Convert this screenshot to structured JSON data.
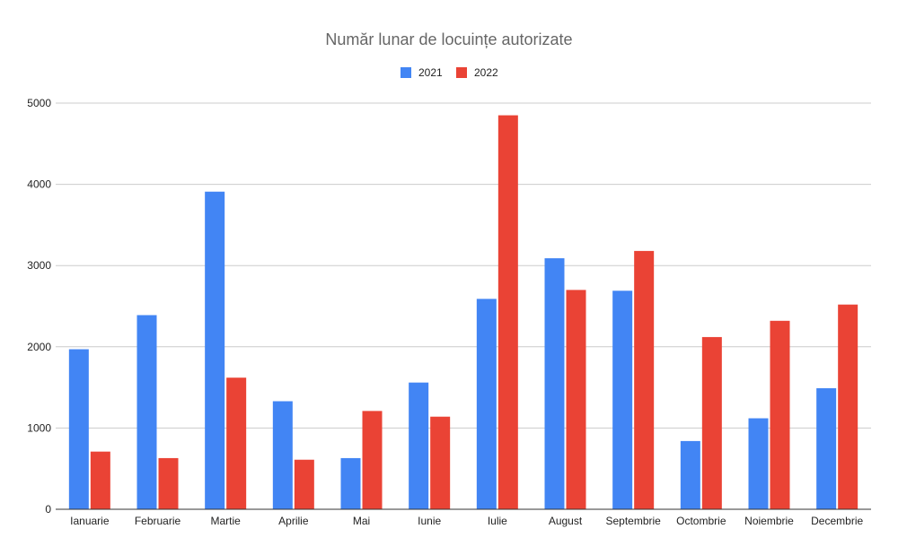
{
  "chart_data": {
    "type": "bar",
    "title": "Număr lunar de locuințe autorizate",
    "xlabel": "",
    "ylabel": "",
    "ylim": [
      0,
      5000
    ],
    "yticks": [
      "0",
      "1000",
      "2000",
      "3000",
      "4000",
      "5000"
    ],
    "grid": true,
    "legend_position": "top",
    "categories": [
      "Ianuarie",
      "Februarie",
      "Martie",
      "Aprilie",
      "Mai",
      "Iunie",
      "Iulie",
      "August",
      "Septembrie",
      "Octombrie",
      "Noiembrie",
      "Decembrie"
    ],
    "series": [
      {
        "name": "2021",
        "color": "#4285f4",
        "values": [
          1970,
          2390,
          3910,
          1330,
          630,
          1560,
          2590,
          3090,
          2690,
          840,
          1120,
          1490
        ]
      },
      {
        "name": "2022",
        "color": "#ea4335",
        "values": [
          710,
          630,
          1620,
          610,
          1210,
          1140,
          4850,
          2700,
          3180,
          2120,
          2320,
          2520
        ]
      }
    ]
  }
}
